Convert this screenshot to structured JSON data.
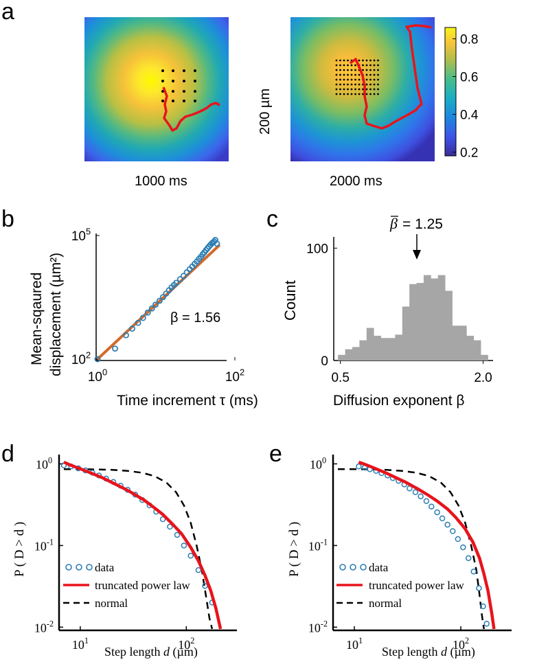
{
  "panel_letters": {
    "a": "a",
    "b": "b",
    "c": "c",
    "d": "d",
    "e": "e"
  },
  "panel_a": {
    "map1_label": "1000 ms",
    "map2_label": "2000 ms",
    "scale_label": "200 µm",
    "colorbar_ticks": [
      "0.8",
      "0.6",
      "0.4",
      "0.2"
    ],
    "colorbar_values": [
      0.8,
      0.6,
      0.4,
      0.2
    ],
    "colorbar_range": [
      0.18,
      0.86
    ]
  },
  "chart_data": [
    {
      "id": "b",
      "type": "scatter",
      "xscale": "log",
      "yscale": "log",
      "xlim": [
        1,
        100
      ],
      "ylim": [
        100,
        100000
      ],
      "xlabel": "Time increment τ (ms)",
      "ylabel_line1": "Mean-sqaured",
      "ylabel_line2": "displacement (µm²)",
      "x_ticks": [
        {
          "base": "10",
          "exp": "0"
        },
        {
          "base": "10",
          "exp": "2"
        }
      ],
      "y_ticks": [
        {
          "base": "10",
          "exp": "2"
        },
        {
          "base": "10",
          "exp": "5"
        }
      ],
      "annotation": "β = 1.56",
      "series": [
        {
          "kind": "points",
          "color": "#2a7db4",
          "x": [
            1,
            1.8,
            2.6,
            3.2,
            3.9,
            4.6,
            5.4,
            6.2,
            7,
            8,
            9,
            10,
            11,
            12,
            13,
            14,
            16,
            18,
            20,
            22,
            24,
            26,
            28,
            30,
            32,
            34,
            36,
            38,
            40,
            42,
            44,
            46,
            48,
            50,
            52,
            55
          ],
          "y": [
            100,
            180,
            380,
            550,
            760,
            1000,
            1350,
            1700,
            2100,
            2600,
            3200,
            3900,
            4700,
            5500,
            6300,
            7100,
            8700,
            10500,
            12800,
            15200,
            17700,
            20500,
            23500,
            27000,
            30500,
            35000,
            39000,
            44000,
            49000,
            54000,
            59000,
            64000,
            68000,
            72000,
            78000,
            63000
          ]
        },
        {
          "kind": "fit",
          "color": "#d4692a",
          "x": [
            1,
            60
          ],
          "y": [
            100,
            59000
          ]
        }
      ]
    },
    {
      "id": "c",
      "type": "bar",
      "xlim": [
        0.43,
        2.09
      ],
      "ylim": [
        0,
        110
      ],
      "xlabel": "Diffusion exponent β",
      "ylabel": "Count",
      "x_ticks": [
        "0.5",
        "2.0"
      ],
      "x_tick_values": [
        0.5,
        2.0
      ],
      "y_ticks": [
        "0",
        "100"
      ],
      "y_tick_values": [
        0,
        100
      ],
      "annotation_symbol": "β",
      "annotation_value": "= 1.25",
      "annotation_x": 1.25,
      "color": "#a6a6a6",
      "bin_edges": [
        0.475,
        0.55,
        0.625,
        0.7,
        0.775,
        0.85,
        0.925,
        1.0,
        1.075,
        1.15,
        1.225,
        1.3,
        1.375,
        1.45,
        1.525,
        1.6,
        1.675,
        1.75,
        1.825,
        1.9,
        1.975,
        2.05
      ],
      "values": [
        5,
        10,
        12,
        18,
        29,
        22,
        20,
        20,
        23,
        48,
        68,
        69,
        76,
        73,
        76,
        62,
        31,
        31,
        22,
        18,
        5,
        8
      ]
    },
    {
      "id": "d",
      "type": "line",
      "xscale": "log",
      "yscale": "log",
      "xlim": [
        6.5,
        300
      ],
      "ylim": [
        0.0095,
        1.25
      ],
      "xlabel_prefix": "Step length ",
      "xlabel_var": "d",
      "xlabel_unit": " (µm)",
      "ylabel": "P ( D > d )",
      "x_ticks": [
        {
          "base": "10",
          "exp": "1"
        },
        {
          "base": "10",
          "exp": "2"
        }
      ],
      "y_ticks": [
        {
          "base": "10",
          "exp": "0"
        },
        {
          "base": "10",
          "exp": "-1"
        },
        {
          "base": "10",
          "exp": "-2"
        }
      ],
      "legend": [
        "data",
        "truncated power law",
        "normal"
      ],
      "series": [
        {
          "name": "data",
          "kind": "points",
          "color": "#2a7db4",
          "x": [
            7,
            8.2,
            9.6,
            11.2,
            13,
            15,
            17.5,
            20.5,
            24,
            28,
            33,
            38.5,
            45,
            52,
            60,
            70,
            82,
            95,
            110,
            130,
            150,
            175
          ],
          "y": [
            0.96,
            0.93,
            0.88,
            0.83,
            0.78,
            0.72,
            0.66,
            0.6,
            0.54,
            0.48,
            0.42,
            0.36,
            0.31,
            0.26,
            0.21,
            0.17,
            0.135,
            0.1,
            0.075,
            0.05,
            0.032,
            0.02
          ]
        },
        {
          "name": "truncated power law",
          "kind": "line",
          "color": "#e8141c",
          "x": [
            7,
            8,
            10,
            13,
            16,
            20,
            25,
            30,
            40,
            50,
            60,
            75,
            90,
            110,
            130,
            150,
            170,
            190,
            210
          ],
          "y": [
            1.05,
            0.97,
            0.87,
            0.76,
            0.68,
            0.59,
            0.51,
            0.45,
            0.36,
            0.29,
            0.24,
            0.18,
            0.14,
            0.095,
            0.065,
            0.043,
            0.028,
            0.017,
            0.0095
          ]
        },
        {
          "name": "normal",
          "kind": "dashed",
          "color": "#000000",
          "x": [
            7,
            10,
            14,
            20,
            28,
            38,
            50,
            65,
            80,
            95,
            110,
            125,
            140,
            155,
            165,
            175
          ],
          "y": [
            0.86,
            0.86,
            0.855,
            0.845,
            0.82,
            0.78,
            0.71,
            0.59,
            0.45,
            0.31,
            0.19,
            0.1,
            0.05,
            0.022,
            0.013,
            0.0095
          ]
        }
      ]
    },
    {
      "id": "e",
      "type": "line",
      "xscale": "log",
      "yscale": "log",
      "xlim": [
        6.5,
        300
      ],
      "ylim": [
        0.0095,
        1.25
      ],
      "xlabel_prefix": "Step length ",
      "xlabel_var": "d",
      "xlabel_unit": " (µm)",
      "ylabel": "P ( D > d )",
      "x_ticks": [
        {
          "base": "10",
          "exp": "1"
        },
        {
          "base": "10",
          "exp": "2"
        }
      ],
      "y_ticks": [
        {
          "base": "10",
          "exp": "0"
        },
        {
          "base": "10",
          "exp": "-1"
        },
        {
          "base": "10",
          "exp": "-2"
        }
      ],
      "legend": [
        "data",
        "truncated power law",
        "normal"
      ],
      "series": [
        {
          "name": "data",
          "kind": "points",
          "color": "#2a7db4",
          "x": [
            11,
            12.5,
            14,
            16,
            18,
            20.5,
            23,
            26,
            29.5,
            33,
            37.5,
            42,
            47.5,
            53,
            60,
            67,
            75,
            84,
            94,
            105,
            118,
            132,
            148,
            162,
            175
          ],
          "y": [
            0.93,
            0.9,
            0.86,
            0.82,
            0.77,
            0.72,
            0.67,
            0.62,
            0.56,
            0.5,
            0.45,
            0.4,
            0.35,
            0.3,
            0.255,
            0.215,
            0.18,
            0.15,
            0.12,
            0.095,
            0.07,
            0.048,
            0.03,
            0.018,
            0.011
          ]
        },
        {
          "name": "truncated power law",
          "kind": "line",
          "color": "#e8141c",
          "x": [
            11,
            13,
            16,
            20,
            25,
            30,
            40,
            50,
            60,
            75,
            90,
            110,
            130,
            150,
            165,
            180,
            195,
            205
          ],
          "y": [
            1.05,
            0.97,
            0.87,
            0.77,
            0.67,
            0.6,
            0.49,
            0.41,
            0.35,
            0.28,
            0.22,
            0.16,
            0.11,
            0.07,
            0.045,
            0.028,
            0.015,
            0.0095
          ]
        },
        {
          "name": "normal",
          "kind": "dashed",
          "color": "#000000",
          "x": [
            7,
            10,
            14,
            20,
            28,
            38,
            50,
            65,
            80,
            95,
            110,
            125,
            140,
            150,
            158,
            165
          ],
          "y": [
            0.86,
            0.86,
            0.855,
            0.845,
            0.82,
            0.78,
            0.71,
            0.59,
            0.45,
            0.31,
            0.19,
            0.1,
            0.05,
            0.025,
            0.014,
            0.0095
          ]
        }
      ]
    }
  ],
  "colors": {
    "trajectory": "#e8141c",
    "grid_dots": "#000000"
  }
}
